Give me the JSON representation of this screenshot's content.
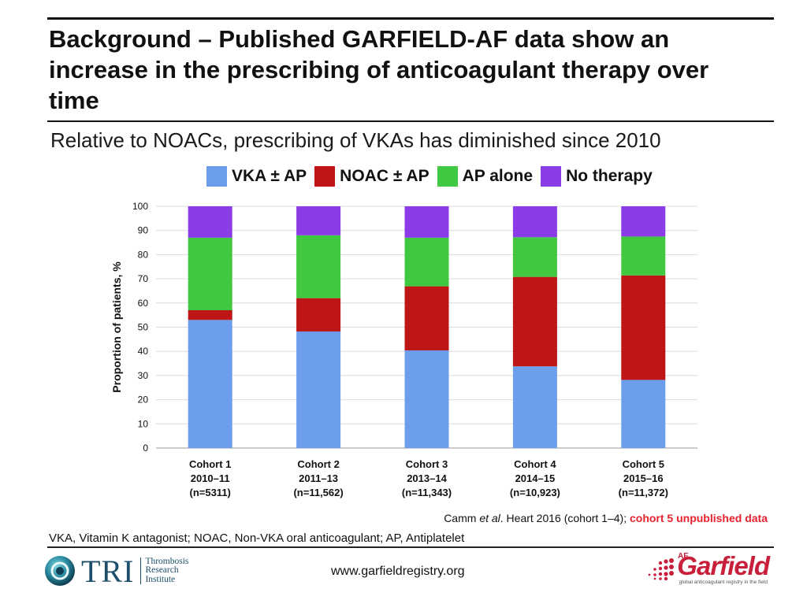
{
  "slide": {
    "title": "Background – Published GARFIELD-AF data show an increase in the prescribing of anticoagulant therapy over time",
    "subtitle": "Relative to NOACs, prescribing of VKAs has diminished since 2010",
    "citation_author": "Camm ",
    "citation_etal": "et al",
    "citation_rest": ". Heart  2016 (cohort 1–4); ",
    "citation_unpublished": "cohort 5 unpublished data",
    "abbreviations": "VKA, Vitamin K antagonist; NOAC, Non-VKA oral anticoagulant; AP, Antiplatelet",
    "website": "www.garfieldregistry.org"
  },
  "logos": {
    "tri_text": "TRI",
    "tri_line1": "Thrombosis",
    "tri_line2": "Research",
    "tri_line3": "Institute",
    "garfield_af": "AF",
    "garfield_word": "Garfield",
    "garfield_tagline": "global anticoagulant registry in the field"
  },
  "colors": {
    "vka": "#6d9eeb",
    "noac": "#be1516",
    "ap": "#3fc840",
    "none": "#8a3de6",
    "rule": "#111111"
  },
  "chart_data": {
    "type": "bar",
    "stacked": true,
    "ylabel": "Proportion of patients, %",
    "ylim": [
      0,
      100
    ],
    "yticks": [
      0,
      10,
      20,
      30,
      40,
      50,
      60,
      70,
      80,
      90,
      100
    ],
    "grid": true,
    "legend_position": "top",
    "categories": [
      [
        "Cohort 1",
        "2010–11",
        "(n=5311)"
      ],
      [
        "Cohort 2",
        "2011–13",
        "(n=11,562)"
      ],
      [
        "Cohort 3",
        "2013–14",
        "(n=11,343)"
      ],
      [
        "Cohort 4",
        "2014–15",
        "(n=10,923)"
      ],
      [
        "Cohort 5",
        "2015–16",
        "(n=11,372)"
      ]
    ],
    "series": [
      {
        "name": "VKA ± AP",
        "color_key": "vka",
        "values": [
          53.0,
          48.2,
          40.4,
          33.8,
          28.2
        ]
      },
      {
        "name": "NOAC ± AP",
        "color_key": "noac",
        "values": [
          4.0,
          13.8,
          26.5,
          37.0,
          43.2
        ]
      },
      {
        "name": "AP alone",
        "color_key": "ap",
        "values": [
          30.0,
          26.0,
          20.1,
          16.4,
          16.1
        ]
      },
      {
        "name": "No therapy",
        "color_key": "none",
        "values": [
          13.0,
          12.0,
          13.0,
          12.8,
          12.5
        ]
      }
    ]
  }
}
